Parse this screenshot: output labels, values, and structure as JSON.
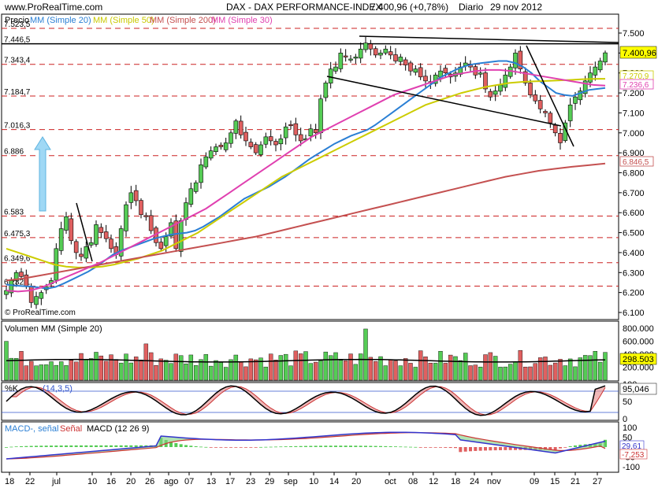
{
  "header": {
    "site": "www.ProRealTime.com",
    "instrument": "DAX - DAX PERFORMANCE-INDEX",
    "price_change": "7.400,96 (+0,78%)",
    "period": "Diario",
    "date": "29 nov 2012",
    "watermark": "© ProRealTime.com"
  },
  "legend": {
    "price": "Precio",
    "mm20": "MM (Simple 20)",
    "mm50": "MM (Simple 50)",
    "mm200": "MM (Simple 200)",
    "mm30": "MM (Simple 30)"
  },
  "colors": {
    "up": "#55cc55",
    "down": "#e06060",
    "mm20": "#2a7fd4",
    "mm50": "#cccc00",
    "mm200": "#c45050",
    "mm30": "#e040b0",
    "support": "#cc2222",
    "badge_price": "#ffff00"
  },
  "price_axis": {
    "ticks": [
      "7.500",
      "7.400",
      "7.300",
      "7.200",
      "7.100",
      "7.000",
      "6.900",
      "6.800",
      "6.700",
      "6.600",
      "6.500",
      "6.400",
      "6.300",
      "6.200",
      "6.100"
    ],
    "badges": {
      "price": "7.400,96",
      "mm50": "7.270,9",
      "mm30": "7.236,6",
      "mm200": "6.846,5"
    }
  },
  "levels": [
    {
      "label": "7.523,5",
      "value": 7523.5
    },
    {
      "label": "7.446,5",
      "value": 7446.5
    },
    {
      "label": "7.343,4",
      "value": 7343.4
    },
    {
      "label": "7.184,7",
      "value": 7184.7
    },
    {
      "label": "7.016,3",
      "value": 7016.3
    },
    {
      "label": "6.886",
      "value": 6886
    },
    {
      "label": "6.583",
      "value": 6583
    },
    {
      "label": "6.475,3",
      "value": 6475.3
    },
    {
      "label": "6.349,6",
      "value": 6349.6
    },
    {
      "label": "6.232,1",
      "value": 6232.1
    }
  ],
  "volume": {
    "label": "Volumen",
    "ma_label": "MM (Simple 20)",
    "ticks": [
      "800.000",
      "600.000",
      "400.000",
      "200.000"
    ],
    "badge": "298.503"
  },
  "stochastic": {
    "label": "%K",
    "params": "(14,3,5)",
    "ticks": [
      "100",
      "50",
      "0"
    ],
    "badge": "95,046"
  },
  "macd": {
    "label_a": "MACD-, señal",
    "label_b": "Señal",
    "label_c": "MACD (12 26 9)",
    "ticks": [
      "100",
      "50",
      "0",
      "-50",
      "-100"
    ],
    "badge_macd": "29,61",
    "badge_signal": "-7,253"
  },
  "x_axis": {
    "labels": [
      "18",
      "22",
      "jul",
      "10",
      "16",
      "20",
      "26",
      "ago",
      "07",
      "13",
      "17",
      "23",
      "29",
      "sep",
      "10",
      "14",
      "20",
      "oct",
      "08",
      "12",
      "18",
      "24",
      "nov",
      "09",
      "15",
      "21",
      "27"
    ]
  },
  "chart_data": {
    "type": "candlestick",
    "title": "DAX - DAX PERFORMANCE-INDEX",
    "period": "Diario",
    "ylim": [
      6080,
      7560
    ],
    "x_labels": [
      "18",
      "22",
      "jul",
      "10",
      "16",
      "20",
      "26",
      "ago",
      "07",
      "13",
      "17",
      "23",
      "29",
      "sep",
      "10",
      "14",
      "20",
      "oct",
      "08",
      "12",
      "18",
      "24",
      "nov",
      "09",
      "15",
      "21",
      "27"
    ],
    "last": {
      "close": 7400.96,
      "change_pct": 0.78,
      "date": "29 nov 2012"
    },
    "ohlc_close_approx": [
      6210,
      6260,
      6300,
      6280,
      6230,
      6150,
      6180,
      6200,
      6230,
      6260,
      6420,
      6520,
      6580,
      6460,
      6400,
      6380,
      6430,
      6450,
      6540,
      6500,
      6470,
      6420,
      6390,
      6520,
      6640,
      6700,
      6660,
      6590,
      6580,
      6510,
      6450,
      6420,
      6480,
      6550,
      6420,
      6560,
      6650,
      6720,
      6750,
      6840,
      6880,
      6910,
      6930,
      6930,
      6950,
      7000,
      7060,
      6990,
      6960,
      6930,
      6900,
      6940,
      6980,
      6960,
      6940,
      6970,
      7030,
      7040,
      6990,
      6960,
      6970,
      7020,
      7000,
      7170,
      7250,
      7320,
      7330,
      7400,
      7380,
      7370,
      7380,
      7420,
      7450,
      7420,
      7390,
      7400,
      7420,
      7390,
      7360,
      7380,
      7340,
      7310,
      7320,
      7280,
      7260,
      7250,
      7290,
      7310,
      7300,
      7280,
      7300,
      7330,
      7350,
      7330,
      7290,
      7300,
      7220,
      7180,
      7210,
      7240,
      7290,
      7330,
      7400,
      7320,
      7250,
      7190,
      7160,
      7120,
      7100,
      7050,
      7000,
      6950,
      7050,
      7140,
      7180,
      7210,
      7260,
      7300,
      7330,
      7360,
      7400.96
    ],
    "series": [
      {
        "name": "MM (Simple 20)",
        "values_approx": [
          6240,
          6235,
          6232,
          6230,
          6225,
          6220,
          6228,
          6245,
          6265,
          6285,
          6305,
          6330,
          6360,
          6390,
          6410,
          6425,
          6440,
          6455,
          6470,
          6480,
          6490,
          6495,
          6500,
          6510,
          6530,
          6555,
          6580,
          6610,
          6640,
          6670,
          6690,
          6710,
          6730,
          6755,
          6780,
          6810,
          6840,
          6870,
          6895,
          6920,
          6945,
          6965,
          6985,
          7000,
          7015,
          7040,
          7070,
          7100,
          7130,
          7160,
          7190,
          7220,
          7250,
          7280,
          7300,
          7320,
          7335,
          7345,
          7350,
          7355,
          7360,
          7360,
          7350,
          7330,
          7300,
          7260,
          7230,
          7200,
          7190,
          7185,
          7200,
          7215,
          7220,
          7225
        ]
      },
      {
        "name": "MM (Simple 50)",
        "values_approx": [
          6420,
          6400,
          6380,
          6360,
          6340,
          6330,
          6325,
          6325,
          6330,
          6340,
          6355,
          6370,
          6390,
          6410,
          6440,
          6470,
          6500,
          6540,
          6580,
          6620,
          6660,
          6700,
          6740,
          6780,
          6810,
          6840,
          6870,
          6900,
          6930,
          6960,
          6990,
          7020,
          7050,
          7080,
          7110,
          7140,
          7160,
          7180,
          7200,
          7215,
          7230,
          7240,
          7250,
          7255,
          7258,
          7260,
          7262,
          7265,
          7268,
          7270,
          7271
        ]
      },
      {
        "name": "MM (Simple 200)",
        "values_approx": [
          6260,
          6270,
          6285,
          6300,
          6315,
          6330,
          6345,
          6360,
          6375,
          6390,
          6405,
          6420,
          6435,
          6450,
          6465,
          6480,
          6500,
          6520,
          6540,
          6560,
          6580,
          6600,
          6620,
          6640,
          6660,
          6680,
          6700,
          6720,
          6740,
          6760,
          6780,
          6795,
          6810,
          6820,
          6830,
          6838,
          6846.5
        ]
      },
      {
        "name": "MM (Simple 30)",
        "values_approx": [
          6210,
          6205,
          6210,
          6225,
          6250,
          6275,
          6300,
          6325,
          6350,
          6380,
          6410,
          6440,
          6470,
          6500,
          6530,
          6560,
          6590,
          6620,
          6660,
          6700,
          6740,
          6780,
          6820,
          6860,
          6900,
          6940,
          6980,
          7010,
          7040,
          7070,
          7100,
          7130,
          7160,
          7190,
          7210,
          7230,
          7250,
          7270,
          7290,
          7300,
          7310,
          7315,
          7315,
          7310,
          7300,
          7290,
          7280,
          7270,
          7260,
          7250,
          7240,
          7236.6
        ]
      }
    ],
    "volume_last": 298503,
    "stochastic_last": 95.046,
    "macd_last": 29.61,
    "signal_last": -7.253
  }
}
